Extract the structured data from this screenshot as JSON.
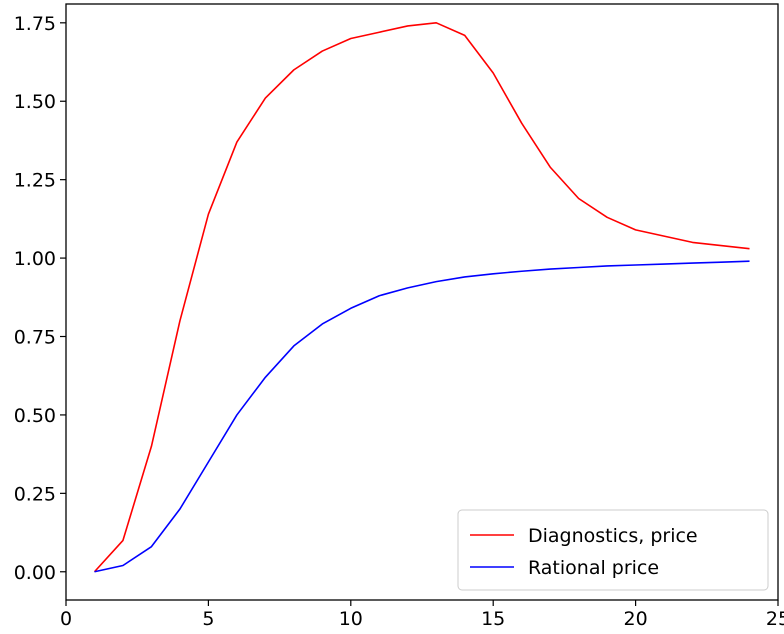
{
  "chart_data": {
    "type": "line",
    "title": "",
    "xlabel": "",
    "ylabel": "",
    "xlim": [
      0,
      25
    ],
    "ylim": [
      -0.09,
      1.81
    ],
    "grid": false,
    "legend_placement": "lower-right",
    "x_ticks": [
      0,
      5,
      10,
      15,
      20,
      25
    ],
    "x_tick_labels": [
      "0",
      "5",
      "10",
      "15",
      "20",
      "25"
    ],
    "y_ticks": [
      0.0,
      0.25,
      0.5,
      0.75,
      1.0,
      1.25,
      1.5,
      1.75
    ],
    "y_tick_labels": [
      "0.00",
      "0.25",
      "0.50",
      "0.75",
      "1.00",
      "1.25",
      "1.50",
      "1.75"
    ],
    "series": [
      {
        "name": "Diagnostics, price",
        "color": "#ff0000",
        "x": [
          1,
          2,
          3,
          4,
          5,
          6,
          7,
          8,
          9,
          10,
          11,
          12,
          13,
          14,
          15,
          16,
          17,
          18,
          19,
          20,
          21,
          22,
          23,
          24
        ],
        "y": [
          0.0,
          0.1,
          0.4,
          0.8,
          1.14,
          1.37,
          1.51,
          1.6,
          1.66,
          1.7,
          1.72,
          1.74,
          1.75,
          1.71,
          1.59,
          1.43,
          1.29,
          1.19,
          1.13,
          1.09,
          1.07,
          1.05,
          1.04,
          1.03
        ]
      },
      {
        "name": "Rational price",
        "color": "#0000ff",
        "x": [
          1,
          2,
          3,
          4,
          5,
          6,
          7,
          8,
          9,
          10,
          11,
          12,
          13,
          14,
          15,
          16,
          17,
          18,
          19,
          20,
          21,
          22,
          23,
          24
        ],
        "y": [
          0.0,
          0.02,
          0.08,
          0.2,
          0.35,
          0.5,
          0.62,
          0.72,
          0.79,
          0.84,
          0.88,
          0.905,
          0.925,
          0.94,
          0.95,
          0.958,
          0.965,
          0.97,
          0.975,
          0.978,
          0.981,
          0.984,
          0.987,
          0.99
        ]
      }
    ]
  }
}
